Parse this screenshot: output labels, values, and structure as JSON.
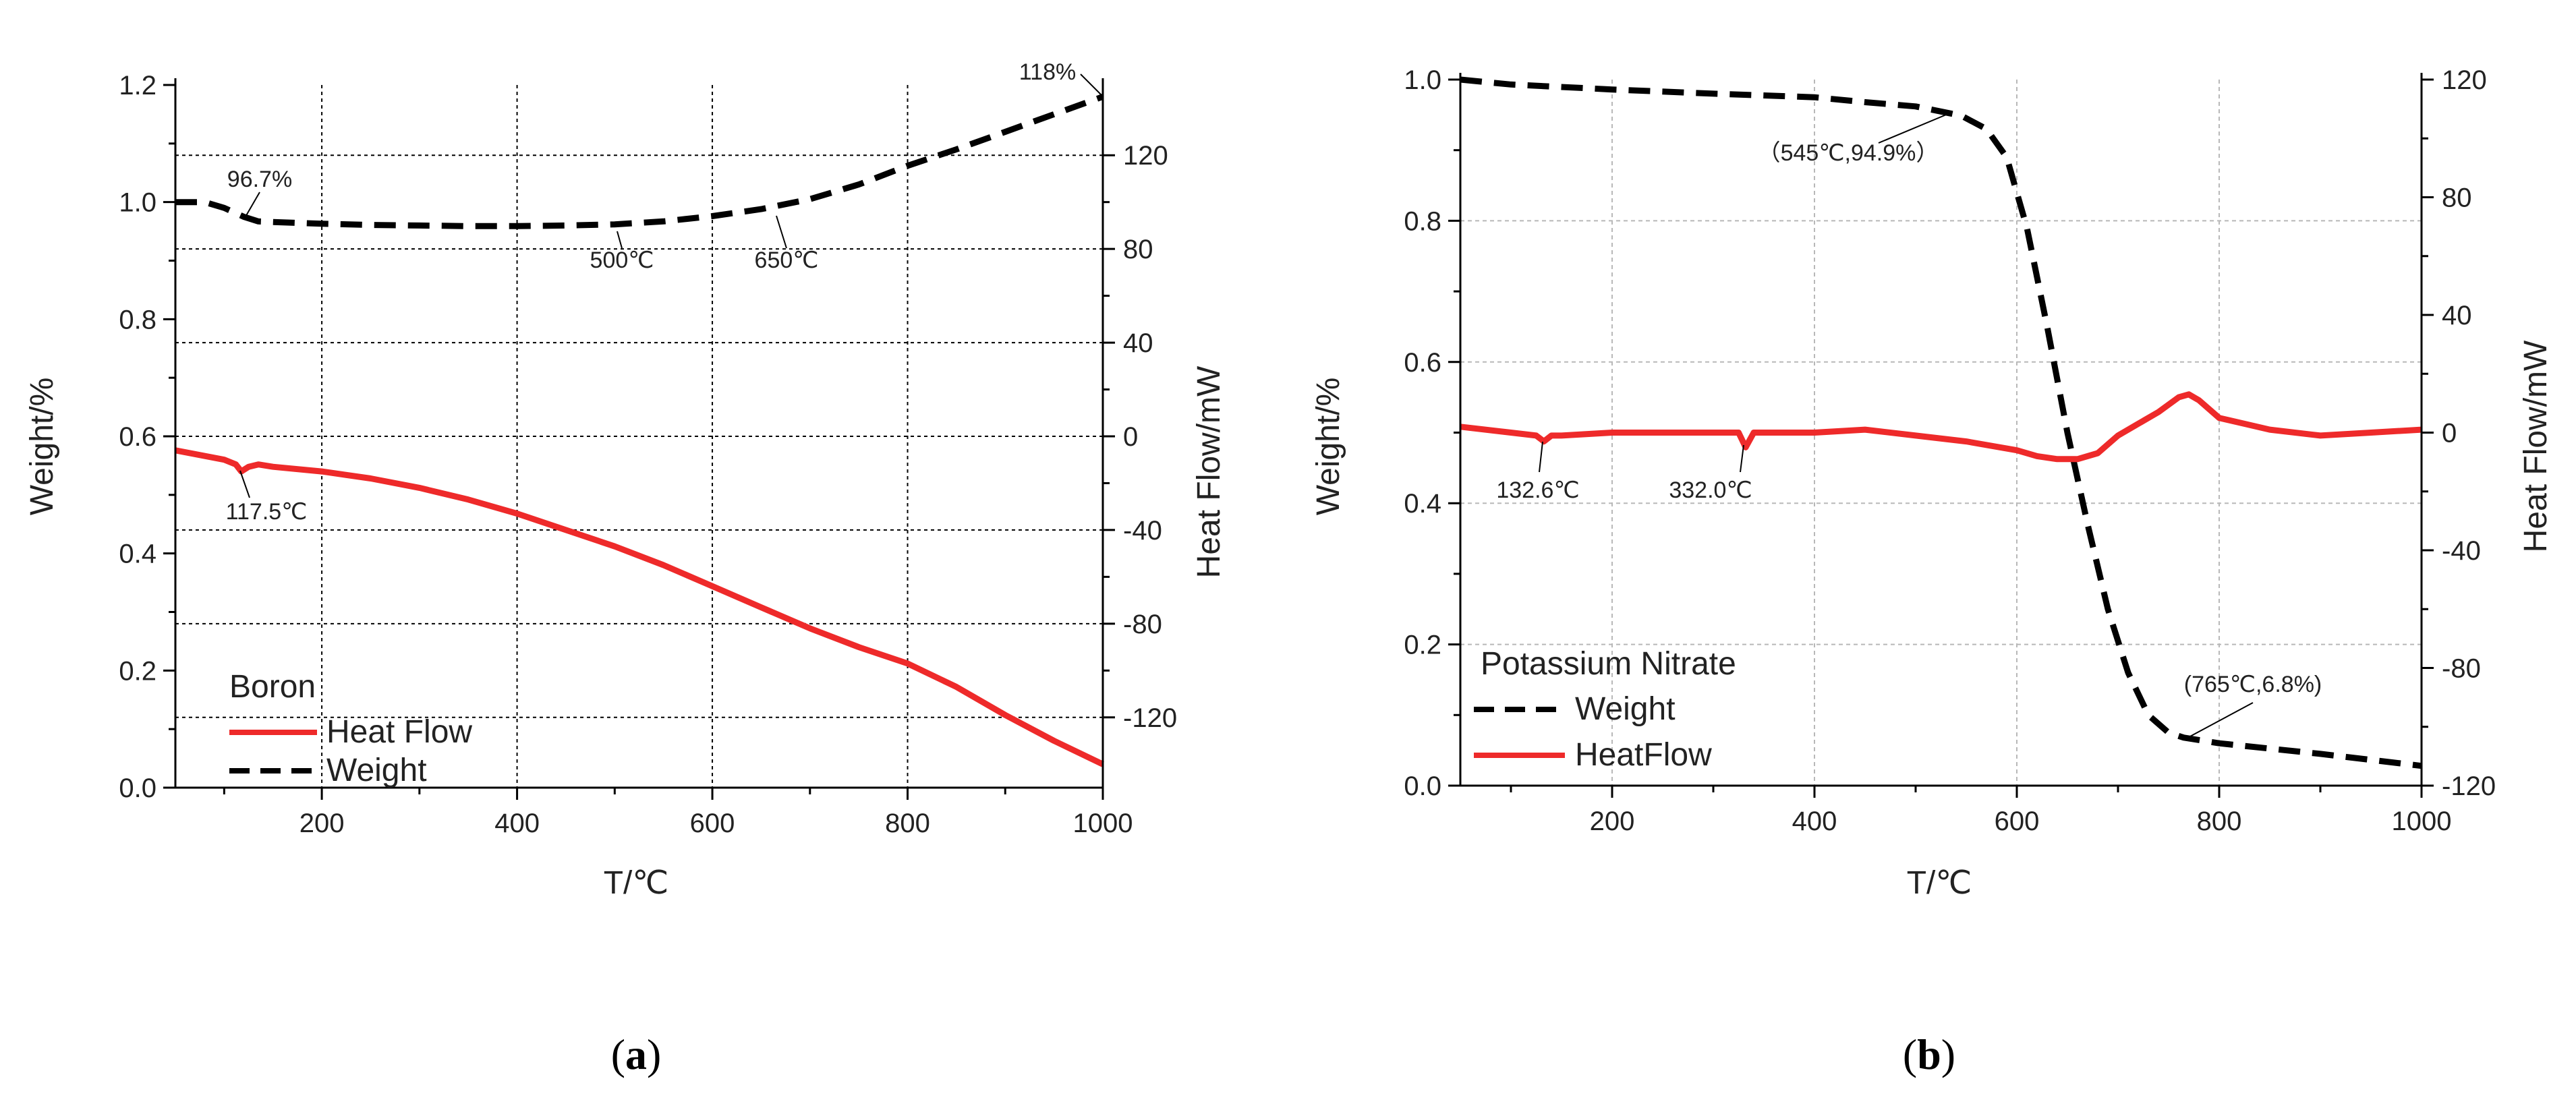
{
  "chart_data": [
    {
      "type": "line",
      "panel_label": "a",
      "xlabel": "T/℃",
      "ylabel_left": "Weight/%",
      "ylabel_right": "Heat Flow/mW",
      "xlim": [
        50,
        1000
      ],
      "ylim_left": [
        0.0,
        1.2
      ],
      "ylim_right": [
        -150,
        150
      ],
      "xticks": [
        200,
        400,
        600,
        800,
        1000
      ],
      "xtick_labels": [
        "200",
        "400",
        "600",
        "800",
        "1000"
      ],
      "yticks_left": [
        0.0,
        0.2,
        0.4,
        0.6,
        0.8,
        1.0,
        1.2
      ],
      "ytick_labels_left": [
        "0.0",
        "0.2",
        "0.4",
        "0.6",
        "0.8",
        "1.0",
        "1.2"
      ],
      "yticks_right": [
        -120,
        -80,
        -40,
        0,
        40,
        80,
        120
      ],
      "ytick_labels_right": [
        "-120",
        "-80",
        "-40",
        "0",
        "40",
        "80",
        "120"
      ],
      "grid": true,
      "legend": {
        "title": "Boron",
        "placement": "bottom-left",
        "entries": [
          {
            "label": "Heat Flow",
            "color": "#ee2a2a",
            "style": "solid"
          },
          {
            "label": "Weight",
            "color": "#000000",
            "style": "dashed"
          }
        ]
      },
      "series": [
        {
          "name": "Weight",
          "axis": "left",
          "color": "#000000",
          "style": "dashed",
          "x": [
            50,
            80,
            100,
            120,
            135,
            150,
            200,
            250,
            300,
            350,
            400,
            450,
            500,
            550,
            600,
            650,
            700,
            750,
            800,
            850,
            900,
            950,
            1000
          ],
          "y": [
            1.0,
            1.0,
            0.99,
            0.975,
            0.967,
            0.966,
            0.963,
            0.961,
            0.96,
            0.959,
            0.959,
            0.96,
            0.962,
            0.967,
            0.976,
            0.988,
            1.005,
            1.03,
            1.062,
            1.09,
            1.12,
            1.15,
            1.18
          ]
        },
        {
          "name": "Heat Flow",
          "axis": "right",
          "color": "#ee2a2a",
          "style": "solid",
          "x": [
            50,
            100,
            112,
            117.5,
            125,
            135,
            150,
            200,
            250,
            300,
            350,
            400,
            450,
            500,
            550,
            600,
            650,
            700,
            750,
            800,
            850,
            900,
            950,
            1000
          ],
          "y": [
            -6,
            -10,
            -12,
            -15,
            -13,
            -12,
            -13,
            -15,
            -18,
            -22,
            -27,
            -33,
            -40,
            -47,
            -55,
            -64,
            -73,
            -82,
            -90,
            -97,
            -107,
            -119,
            -130,
            -140
          ]
        }
      ],
      "annotations": [
        {
          "text": "96.7%",
          "x": 130,
          "y": 0.967,
          "axis": "left"
        },
        {
          "text": "500℃",
          "x": 500,
          "y": 0.962,
          "axis": "left"
        },
        {
          "text": "650℃",
          "x": 650,
          "y": 0.988,
          "axis": "left"
        },
        {
          "text": "118%",
          "x": 1000,
          "y": 1.18,
          "axis": "left"
        },
        {
          "text": "117.5℃",
          "x": 117.5,
          "y": -15,
          "axis": "right"
        }
      ]
    },
    {
      "type": "line",
      "panel_label": "b",
      "xlabel": "T/℃",
      "ylabel_left": "Weight/%",
      "ylabel_right": "Heat Flow/mW",
      "xlim": [
        50,
        1000
      ],
      "ylim_left": [
        0.0,
        1.0
      ],
      "ylim_right": [
        -120,
        120
      ],
      "xticks": [
        200,
        400,
        600,
        800,
        1000
      ],
      "xtick_labels": [
        "200",
        "400",
        "600",
        "800",
        "1000"
      ],
      "yticks_left": [
        0.0,
        0.2,
        0.4,
        0.6,
        0.8,
        1.0
      ],
      "ytick_labels_left": [
        "0.0",
        "0.2",
        "0.4",
        "0.6",
        "0.8",
        "1.0"
      ],
      "yticks_right": [
        -120,
        -80,
        -40,
        0,
        40,
        80,
        120
      ],
      "ytick_labels_right": [
        "-120",
        "-80",
        "-40",
        "0",
        "40",
        "80",
        "120"
      ],
      "grid": true,
      "legend": {
        "title": "Potassium Nitrate",
        "placement": "bottom-left",
        "entries": [
          {
            "label": "Weight",
            "color": "#000000",
            "style": "dashed"
          },
          {
            "label": "HeatFlow",
            "color": "#ee2a2a",
            "style": "solid"
          }
        ]
      },
      "series": [
        {
          "name": "Weight",
          "axis": "left",
          "color": "#000000",
          "style": "dashed",
          "x": [
            50,
            100,
            200,
            300,
            400,
            450,
            500,
            545,
            570,
            590,
            610,
            630,
            650,
            670,
            690,
            710,
            730,
            750,
            765,
            800,
            900,
            1000
          ],
          "y": [
            1.0,
            0.993,
            0.986,
            0.98,
            0.975,
            0.968,
            0.962,
            0.949,
            0.93,
            0.89,
            0.79,
            0.65,
            0.5,
            0.37,
            0.25,
            0.16,
            0.1,
            0.075,
            0.068,
            0.06,
            0.045,
            0.028
          ]
        },
        {
          "name": "HeatFlow",
          "axis": "right",
          "color": "#ee2a2a",
          "style": "solid",
          "x": [
            50,
            100,
            125,
            132.6,
            140,
            150,
            200,
            300,
            325,
            332.0,
            340,
            350,
            400,
            450,
            500,
            550,
            600,
            620,
            640,
            660,
            680,
            700,
            720,
            740,
            760,
            770,
            780,
            800,
            850,
            900,
            950,
            1000
          ],
          "y": [
            2,
            0,
            -1,
            -3,
            -1,
            -1,
            0,
            0,
            0,
            -5,
            0,
            0,
            0,
            1,
            -1,
            -3,
            -6,
            -8,
            -9,
            -9,
            -7,
            -1,
            3,
            7,
            12,
            13,
            11,
            5,
            1,
            -1,
            0,
            1
          ]
        }
      ],
      "annotations": [
        {
          "text": "（545℃,94.9%）",
          "x": 545,
          "y": 0.949,
          "axis": "left"
        },
        {
          "text": "(765℃,6.8%)",
          "x": 765,
          "y": 0.068,
          "axis": "left"
        },
        {
          "text": "132.6℃",
          "x": 132.6,
          "y": -3,
          "axis": "right"
        },
        {
          "text": "332.0℃",
          "x": 332.0,
          "y": -5,
          "axis": "right"
        }
      ]
    }
  ]
}
